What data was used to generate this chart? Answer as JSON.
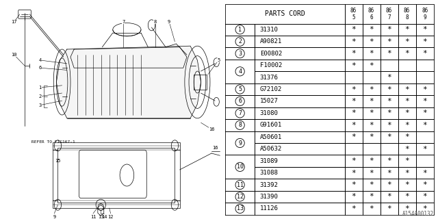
{
  "diagram_ref": "A154A00132",
  "rows": [
    {
      "num": "1",
      "part": "31310",
      "marks": [
        1,
        1,
        1,
        1,
        1
      ],
      "merged": false
    },
    {
      "num": "2",
      "part": "A90821",
      "marks": [
        1,
        1,
        1,
        1,
        1
      ],
      "merged": false
    },
    {
      "num": "3",
      "part": "E00802",
      "marks": [
        1,
        1,
        1,
        1,
        1
      ],
      "merged": false
    },
    {
      "num": "4",
      "part": "F10002",
      "marks": [
        1,
        1,
        0,
        0,
        0
      ],
      "merged": true,
      "merge_label": "4"
    },
    {
      "num": "",
      "part": "31376",
      "marks": [
        0,
        0,
        1,
        0,
        0
      ],
      "merged": true,
      "merge_label": ""
    },
    {
      "num": "5",
      "part": "G72102",
      "marks": [
        1,
        1,
        1,
        1,
        1
      ],
      "merged": false
    },
    {
      "num": "6",
      "part": "15027",
      "marks": [
        1,
        1,
        1,
        1,
        1
      ],
      "merged": false
    },
    {
      "num": "7",
      "part": "31080",
      "marks": [
        1,
        1,
        1,
        1,
        1
      ],
      "merged": false
    },
    {
      "num": "8",
      "part": "G91601",
      "marks": [
        1,
        1,
        1,
        1,
        1
      ],
      "merged": false
    },
    {
      "num": "9",
      "part": "A50601",
      "marks": [
        1,
        1,
        1,
        1,
        0
      ],
      "merged": true,
      "merge_label": "9"
    },
    {
      "num": "",
      "part": "A50632",
      "marks": [
        0,
        0,
        0,
        1,
        1
      ],
      "merged": true,
      "merge_label": ""
    },
    {
      "num": "10",
      "part": "31089",
      "marks": [
        1,
        1,
        1,
        1,
        0
      ],
      "merged": true,
      "merge_label": "10"
    },
    {
      "num": "",
      "part": "31088",
      "marks": [
        1,
        1,
        1,
        1,
        1
      ],
      "merged": true,
      "merge_label": ""
    },
    {
      "num": "11",
      "part": "31392",
      "marks": [
        1,
        1,
        1,
        1,
        1
      ],
      "merged": false
    },
    {
      "num": "12",
      "part": "31390",
      "marks": [
        1,
        1,
        1,
        1,
        1
      ],
      "merged": false
    },
    {
      "num": "13",
      "part": "11126",
      "marks": [
        1,
        1,
        1,
        1,
        1
      ],
      "merged": false
    }
  ],
  "merge_groups": [
    {
      "label": "4",
      "start": 3,
      "end": 4
    },
    {
      "label": "9",
      "start": 9,
      "end": 10
    },
    {
      "label": "10",
      "start": 11,
      "end": 12
    }
  ],
  "col_headers": [
    "86\n5",
    "86\n6",
    "86\n7",
    "86\n8",
    "86\n9"
  ],
  "bg_color": "#ffffff",
  "line_color": "#000000",
  "lw": 0.5
}
